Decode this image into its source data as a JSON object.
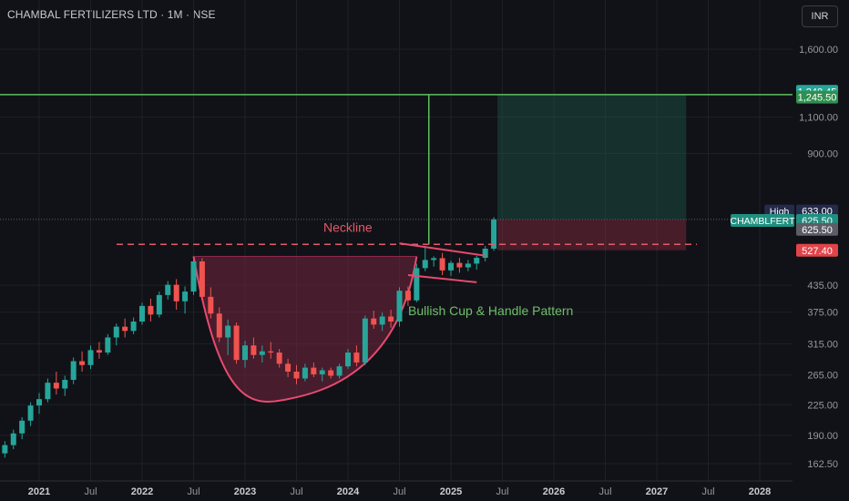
{
  "header": {
    "title": "CHAMBAL FERTILIZERS LTD · 1M · NSE",
    "currency": "INR"
  },
  "colors": {
    "background": "#111217",
    "up": "#26a69a",
    "down": "#ef5350",
    "target_line": "#5cbf60",
    "neckline": "#e05a6a",
    "cup": "#e84a6f",
    "grid": "#1e2026",
    "axis_text": "#9598a1"
  },
  "chart_data": {
    "type": "candlestick",
    "y_scale": "log",
    "x_range": [
      "2020-07",
      "2028-06"
    ],
    "y_range": [
      145,
      2000
    ],
    "y_ticks": [
      "1,600.00",
      "1,100.00",
      "900.00",
      "435.00",
      "375.00",
      "315.00",
      "265.00",
      "225.00",
      "190.00",
      "162.50"
    ],
    "y_tick_values": [
      1600,
      1100,
      900,
      435,
      375,
      315,
      265,
      225,
      190,
      162.5
    ],
    "x_ticks": [
      {
        "label": "2021",
        "date": "2021-01",
        "bold": true
      },
      {
        "label": "Jul",
        "date": "2021-07",
        "bold": false
      },
      {
        "label": "2022",
        "date": "2022-01",
        "bold": true
      },
      {
        "label": "Jul",
        "date": "2022-07",
        "bold": false
      },
      {
        "label": "2023",
        "date": "2023-01",
        "bold": true
      },
      {
        "label": "Jul",
        "date": "2023-07",
        "bold": false
      },
      {
        "label": "2024",
        "date": "2024-01",
        "bold": true
      },
      {
        "label": "Jul",
        "date": "2024-07",
        "bold": false
      },
      {
        "label": "2025",
        "date": "2025-01",
        "bold": true
      },
      {
        "label": "Jul",
        "date": "2025-07",
        "bold": false
      },
      {
        "label": "2026",
        "date": "2026-01",
        "bold": true
      },
      {
        "label": "Jul",
        "date": "2026-07",
        "bold": false
      },
      {
        "label": "2027",
        "date": "2027-01",
        "bold": true
      },
      {
        "label": "Jul",
        "date": "2027-07",
        "bold": false
      },
      {
        "label": "2028",
        "date": "2028-01",
        "bold": true
      }
    ],
    "ohlc": [
      [
        "2020-06",
        150,
        162,
        148,
        158
      ],
      [
        "2020-07",
        158,
        170,
        152,
        165
      ],
      [
        "2020-08",
        165,
        178,
        160,
        172
      ],
      [
        "2020-09",
        172,
        184,
        168,
        180
      ],
      [
        "2020-10",
        180,
        196,
        176,
        192
      ],
      [
        "2020-11",
        192,
        210,
        186,
        206
      ],
      [
        "2020-12",
        206,
        228,
        200,
        224
      ],
      [
        "2021-01",
        224,
        240,
        214,
        232
      ],
      [
        "2021-02",
        232,
        260,
        228,
        254
      ],
      [
        "2021-03",
        254,
        270,
        238,
        246
      ],
      [
        "2021-04",
        246,
        264,
        236,
        258
      ],
      [
        "2021-05",
        258,
        292,
        252,
        286
      ],
      [
        "2021-06",
        286,
        302,
        270,
        280
      ],
      [
        "2021-07",
        280,
        312,
        274,
        304
      ],
      [
        "2021-08",
        304,
        318,
        290,
        300
      ],
      [
        "2021-09",
        300,
        332,
        296,
        326
      ],
      [
        "2021-10",
        326,
        352,
        312,
        346
      ],
      [
        "2021-11",
        346,
        362,
        326,
        338
      ],
      [
        "2021-12",
        338,
        364,
        332,
        356
      ],
      [
        "2022-01",
        356,
        395,
        350,
        388
      ],
      [
        "2022-02",
        388,
        404,
        356,
        370
      ],
      [
        "2022-03",
        370,
        420,
        364,
        412
      ],
      [
        "2022-04",
        412,
        445,
        402,
        436
      ],
      [
        "2022-05",
        436,
        450,
        380,
        398
      ],
      [
        "2022-06",
        398,
        432,
        372,
        420
      ],
      [
        "2022-07",
        420,
        510,
        412,
        496
      ],
      [
        "2022-08",
        496,
        505,
        400,
        408
      ],
      [
        "2022-09",
        408,
        430,
        362,
        372
      ],
      [
        "2022-10",
        372,
        385,
        318,
        326
      ],
      [
        "2022-11",
        326,
        360,
        296,
        348
      ],
      [
        "2022-12",
        348,
        354,
        282,
        288
      ],
      [
        "2023-01",
        288,
        320,
        276,
        312
      ],
      [
        "2023-02",
        312,
        326,
        290,
        296
      ],
      [
        "2023-03",
        296,
        312,
        284,
        302
      ],
      [
        "2023-04",
        302,
        318,
        290,
        300
      ],
      [
        "2023-05",
        300,
        306,
        276,
        282
      ],
      [
        "2023-06",
        282,
        290,
        262,
        270
      ],
      [
        "2023-07",
        270,
        280,
        252,
        260
      ],
      [
        "2023-08",
        260,
        282,
        256,
        276
      ],
      [
        "2023-09",
        276,
        284,
        262,
        266
      ],
      [
        "2023-10",
        266,
        276,
        256,
        272
      ],
      [
        "2023-11",
        272,
        276,
        260,
        264
      ],
      [
        "2023-12",
        264,
        282,
        260,
        278
      ],
      [
        "2024-01",
        278,
        306,
        274,
        300
      ],
      [
        "2024-02",
        300,
        312,
        278,
        284
      ],
      [
        "2024-03",
        284,
        368,
        280,
        362
      ],
      [
        "2024-04",
        362,
        378,
        342,
        350
      ],
      [
        "2024-05",
        350,
        374,
        338,
        366
      ],
      [
        "2024-06",
        366,
        380,
        344,
        356
      ],
      [
        "2024-07",
        356,
        430,
        346,
        422
      ],
      [
        "2024-08",
        422,
        432,
        388,
        400
      ],
      [
        "2024-09",
        400,
        490,
        396,
        478
      ],
      [
        "2024-10",
        478,
        540,
        470,
        500
      ],
      [
        "2024-11",
        500,
        510,
        482,
        505
      ],
      [
        "2024-12",
        505,
        520,
        460,
        472
      ],
      [
        "2025-01",
        472,
        498,
        458,
        492
      ],
      [
        "2025-02",
        492,
        506,
        466,
        480
      ],
      [
        "2025-03",
        480,
        500,
        470,
        490
      ],
      [
        "2025-04",
        490,
        512,
        474,
        506
      ],
      [
        "2025-05",
        506,
        540,
        496,
        532
      ],
      [
        "2025-06",
        532,
        633,
        526,
        625.5
      ]
    ]
  },
  "drawings": {
    "neckline": {
      "label": "Neckline",
      "price": 545
    },
    "pattern_label": {
      "text": "Bullish Cup & Handle Pattern"
    },
    "target": {
      "price": 1245.5,
      "start": "2025-06",
      "end": "2027-04"
    },
    "entry": {
      "price": 625.5
    },
    "stop": {
      "price": 527.4
    },
    "cup": {
      "left": [
        "2022-07",
        510
      ],
      "bottom": [
        "2023-06",
        232
      ],
      "right": [
        "2024-09",
        510
      ]
    },
    "flag_upper": [
      [
        "2024-07",
        548
      ],
      [
        "2025-05",
        512
      ]
    ],
    "flag_lower": [
      [
        "2024-08",
        460
      ],
      [
        "2025-04",
        442
      ]
    ],
    "measure_line": {
      "date": "2024-10",
      "from": 545,
      "to": 1245.5
    }
  },
  "price_labels": [
    {
      "text": "1,248.45",
      "price": 1268,
      "bg": "#26a69a"
    },
    {
      "text": "1,245.50",
      "price": 1228,
      "bg": "#2f8f50"
    },
    {
      "text": "633.00",
      "price": 655,
      "bg": "#232a4a"
    },
    {
      "text": "625.50",
      "price": 622,
      "bg": "#1f8f80"
    },
    {
      "text": "625.50",
      "price": 592,
      "bg": "#5b5e66"
    },
    {
      "text": "527.40",
      "price": 527.4,
      "bg": "#e0444a"
    }
  ],
  "side_tags": [
    {
      "text": "High",
      "price": 655,
      "bg": "#232a4a"
    },
    {
      "text": "CHAMBLFERT",
      "price": 622,
      "bg": "#1f8f80"
    }
  ]
}
